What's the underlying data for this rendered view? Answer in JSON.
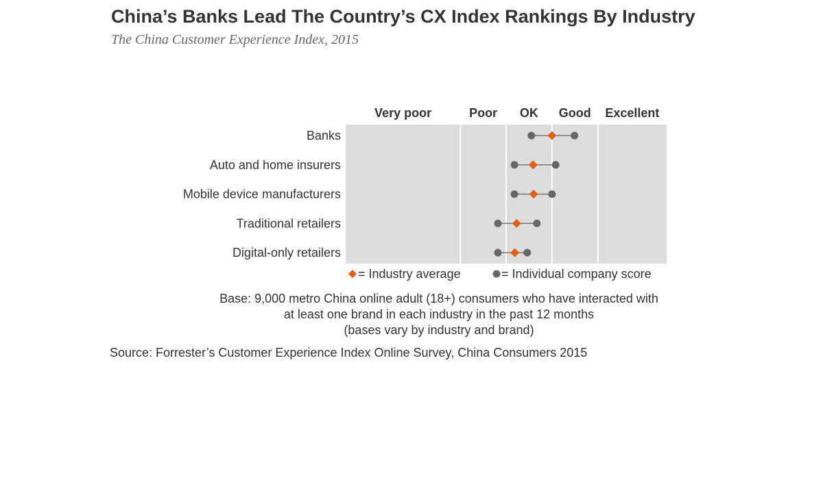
{
  "header": {
    "title": "China’s Banks Lead The Country’s CX Index Rankings By Industry",
    "subtitle": "The China Customer Experience Index, 2015"
  },
  "chart_data": {
    "type": "dot-range",
    "bands": [
      {
        "label": "Very poor",
        "from": 0,
        "to": 55
      },
      {
        "label": "Poor",
        "from": 55,
        "to": 65
      },
      {
        "label": "OK",
        "from": 65,
        "to": 75
      },
      {
        "label": "Good",
        "from": 75,
        "to": 85
      },
      {
        "label": "Excellent",
        "from": 85,
        "to": 100
      }
    ],
    "xlim": [
      30,
      100
    ],
    "categories": [
      "Banks",
      "Auto and home insurers",
      "Mobile device manufacturers",
      "Traditional retailers",
      "Digital-only retailers"
    ],
    "series": [
      {
        "name": "Industry average",
        "values": [
          75.0,
          70.9,
          71.0,
          67.3,
          66.9
        ]
      },
      {
        "name": "Individual company score",
        "min": [
          70.5,
          66.8,
          66.8,
          63.2,
          63.2
        ],
        "max": [
          79.9,
          75.8,
          75.0,
          71.7,
          69.6
        ]
      }
    ],
    "legend": {
      "position": "bottom",
      "average_label": "= Industry average",
      "company_label": "= Individual company score"
    },
    "colors": {
      "average": "#e05f12",
      "company": "#666666",
      "band_fill": "#dcdcdc",
      "divider": "#ffffff",
      "range_line": "#777777"
    }
  },
  "footer": {
    "base_lines": [
      "Base: 9,000 metro China online adult (18+) consumers who have interacted with",
      "at least one brand in each industry in the past 12 months",
      "(bases vary by industry and brand)"
    ],
    "source": "Source: Forrester’s Customer Experience Index Online Survey, China Consumers 2015"
  }
}
